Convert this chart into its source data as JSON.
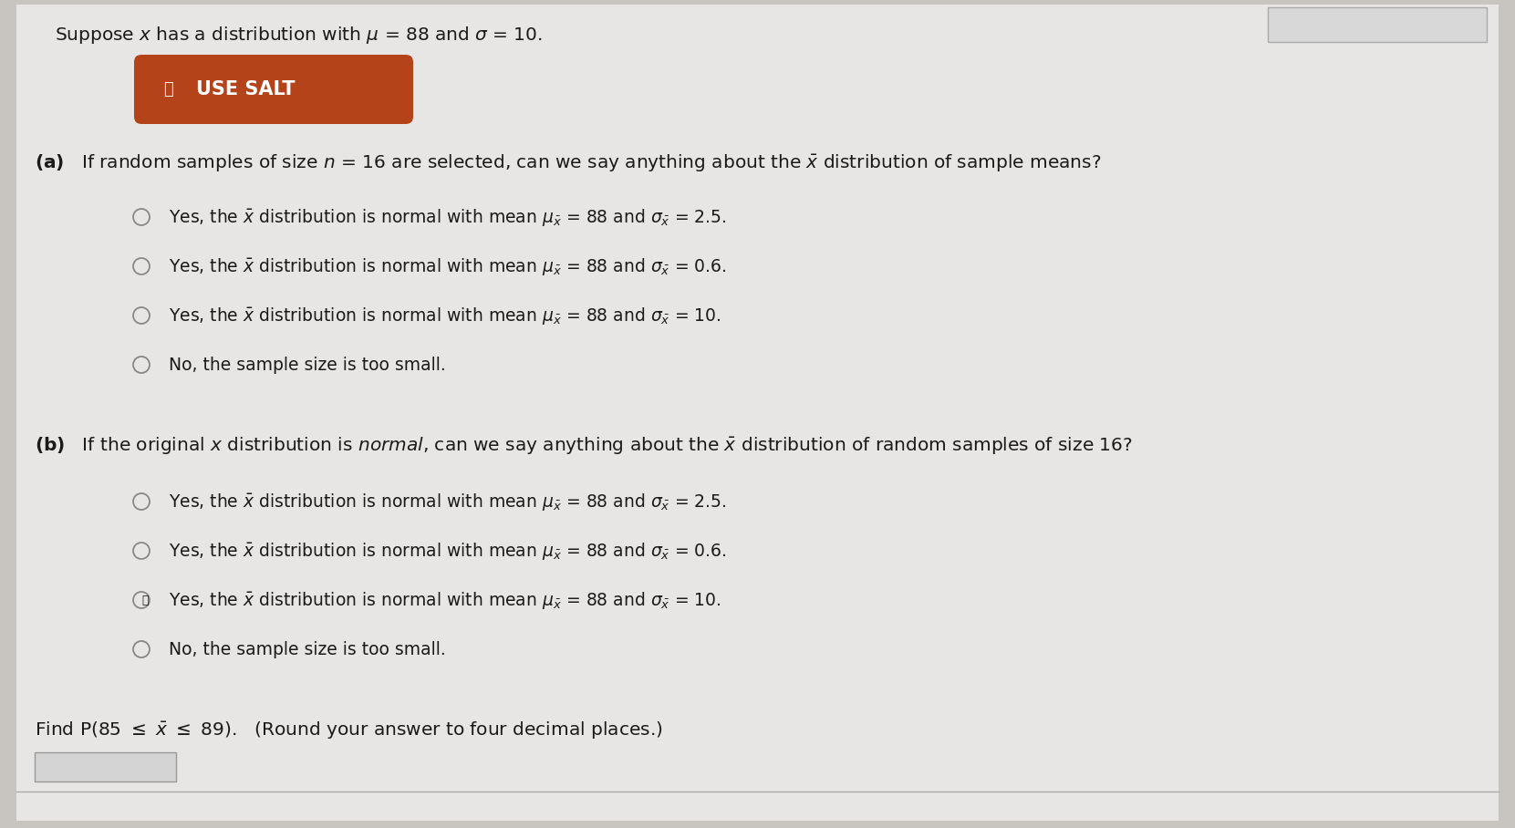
{
  "bg_outer": "#c8c4c0",
  "bg_panel": "#e8e6e4",
  "text_color": "#1a1a1a",
  "button_bg": "#b5431a",
  "button_text_color": "#ffffff",
  "radio_edge_color": "#888888",
  "top_right_box": "#cccccc",
  "answer_box_color": "#e0e0e0",
  "font_size": 14.5,
  "font_size_small": 13.5,
  "title": "Suppose $x$ has a distribution with $\\mu$ = 88 and $\\sigma$ = 10.",
  "button_label": "USE SALT",
  "qa_text": "(a)   If random samples of size $n$ = 16 are selected, can we say anything about the $\\bar{x}$ distribution of sample means?",
  "a_opts": [
    "Yes, the $\\bar{x}$ distribution is normal with mean $\\mu_{\\bar{x}}$ = 88 and $\\sigma_{\\bar{x}}$ = 2.5.",
    "Yes, the $\\bar{x}$ distribution is normal with mean $\\mu_{\\bar{x}}$ = 88 and $\\sigma_{\\bar{x}}$ = 0.6.",
    "Yes, the $\\bar{x}$ distribution is normal with mean $\\mu_{\\bar{x}}$ = 88 and $\\sigma_{\\bar{x}}$ = 10.",
    "No, the sample size is too small."
  ],
  "qb_text": "(b)   If the original $x$ distribution is $\\it{normal}$, can we say anything about the $\\bar{x}$ distribution of random samples of size 16?",
  "b_opts": [
    "Yes, the $\\bar{x}$ distribution is normal with mean $\\mu_{\\bar{x}}$ = 88 and $\\sigma_{\\bar{x}}$ = 2.5.",
    "Yes, the $\\bar{x}$ distribution is normal with mean $\\mu_{\\bar{x}}$ = 88 and $\\sigma_{\\bar{x}}$ = 0.6.",
    "Yes, the $\\bar{x}$ distribution is normal with mean $\\mu_{\\bar{x}}$ = 88 and $\\sigma_{\\bar{x}}$ = 10.",
    "No, the sample size is too small."
  ],
  "find_text": "Find P(85 $\\leq$ $\\bar{x}$ $\\leq$ 89).   (Round your answer to four decimal places.)"
}
